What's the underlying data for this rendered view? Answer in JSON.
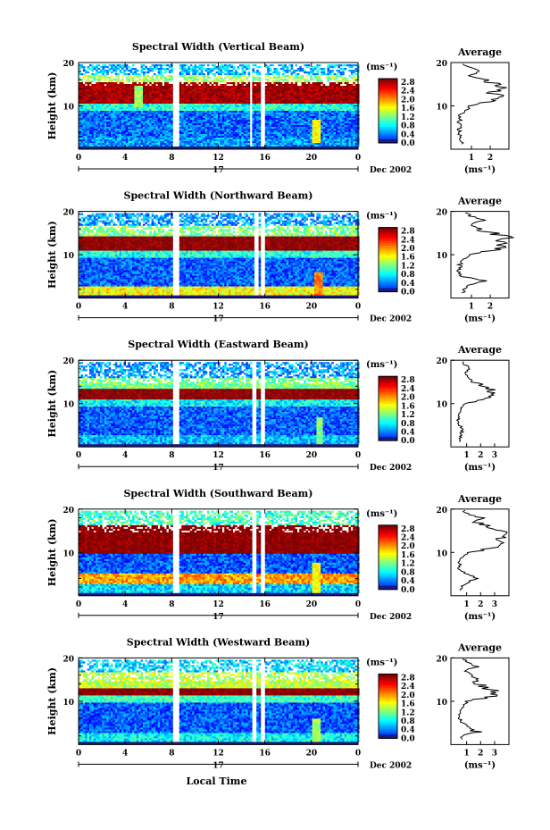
{
  "figure": {
    "xlabel": "Local Time",
    "day_label": "17",
    "date_label": "Dec 2002"
  },
  "chart_data": [
    {
      "type": "heatmap",
      "title": "Spectral Width (Vertical Beam)",
      "ylabel": "Height (km)",
      "xlabel": "Local Time",
      "x_range": [
        0,
        24
      ],
      "y_range": [
        0,
        20
      ],
      "xticks": [
        "0",
        "4",
        "8",
        "12",
        "16",
        "20",
        "0"
      ],
      "yticks": [
        "20",
        "10"
      ],
      "gaps_hours": [
        [
          8.0,
          8.5
        ],
        [
          14.7,
          14.9
        ],
        [
          15.5,
          16.0
        ]
      ],
      "colorbar": {
        "unit": "(ms⁻¹)",
        "ticks": [
          "2.8",
          "2.4",
          "2.0",
          "1.6",
          "1.2",
          "0.8",
          "0.4",
          "0.0"
        ]
      },
      "bands": [
        {
          "y": [
            1.0,
            3.0
          ],
          "value": 0.5
        },
        {
          "y": [
            3.0,
            9.0
          ],
          "value": 0.35
        },
        {
          "y": [
            9.0,
            10.8
          ],
          "value": 0.9
        },
        {
          "y": [
            10.8,
            15.5
          ],
          "value": 2.7
        },
        {
          "y": [
            15.5,
            17.5
          ],
          "value": 1.3
        },
        {
          "y": [
            17.5,
            20.0
          ],
          "value": 0.6
        }
      ],
      "streaks": [
        {
          "x": 20.3,
          "y": [
            1.5,
            7.0
          ],
          "value": 1.6
        },
        {
          "x": 5.0,
          "y": [
            10.0,
            15.0
          ],
          "value": 1.3
        }
      ],
      "average": {
        "title": "Average",
        "unit": "(ms⁻¹)",
        "xticks": [
          "1",
          "2"
        ],
        "yticks": [
          "20",
          "10"
        ],
        "heights": [
          2,
          3,
          4,
          5,
          6,
          8,
          9,
          10,
          11,
          12,
          13,
          14,
          15,
          16,
          17,
          18,
          19,
          20
        ],
        "values": [
          0.5,
          0.4,
          0.35,
          0.4,
          0.35,
          0.4,
          0.7,
          0.9,
          2.2,
          2.6,
          2.1,
          2.8,
          2.3,
          1.7,
          0.9,
          1.5,
          0.8,
          0.6
        ]
      }
    },
    {
      "type": "heatmap",
      "title": "Spectral Width (Northward Beam)",
      "ylabel": "Height (km)",
      "xlabel": "Local Time",
      "x_range": [
        0,
        24
      ],
      "y_range": [
        0,
        20
      ],
      "xticks": [
        "0",
        "4",
        "8",
        "12",
        "16",
        "20",
        "0"
      ],
      "yticks": [
        "20",
        "10"
      ],
      "gaps_hours": [
        [
          8.0,
          8.5
        ],
        [
          15.0,
          15.4
        ],
        [
          15.6,
          16.0
        ]
      ],
      "colorbar": {
        "unit": "(ms⁻¹)",
        "ticks": [
          "2.8",
          "2.4",
          "2.0",
          "1.6",
          "1.2",
          "0.8",
          "0.4",
          "0.0"
        ]
      },
      "bands": [
        {
          "y": [
            1.0,
            2.8
          ],
          "value": 1.6
        },
        {
          "y": [
            2.8,
            9.5
          ],
          "value": 0.3
        },
        {
          "y": [
            9.5,
            11.0
          ],
          "value": 0.9
        },
        {
          "y": [
            11.0,
            14.5
          ],
          "value": 2.8
        },
        {
          "y": [
            14.5,
            17.0
          ],
          "value": 1.2
        },
        {
          "y": [
            17.0,
            20.0
          ],
          "value": 0.5
        }
      ],
      "streaks": [
        {
          "x": 20.5,
          "y": [
            1.0,
            6.0
          ],
          "value": 2.0
        }
      ],
      "average": {
        "title": "Average",
        "unit": "(ms⁻¹)",
        "xticks": [
          "1",
          "2"
        ],
        "yticks": [
          "20",
          "10"
        ],
        "heights": [
          2,
          3,
          4,
          5,
          6,
          8,
          9,
          10,
          11,
          12,
          13,
          14,
          15,
          16,
          17,
          18,
          19,
          20
        ],
        "values": [
          0.6,
          0.9,
          1.7,
          0.5,
          0.35,
          0.4,
          0.6,
          0.9,
          2.4,
          2.8,
          2.6,
          2.9,
          2.2,
          1.4,
          0.9,
          1.6,
          0.9,
          0.6
        ]
      }
    },
    {
      "type": "heatmap",
      "title": "Spectral Width (Eastward Beam)",
      "ylabel": "Height (km)",
      "xlabel": "Local Time",
      "x_range": [
        0,
        24
      ],
      "y_range": [
        0,
        20
      ],
      "xticks": [
        "0",
        "4",
        "8",
        "12",
        "16",
        "20",
        "0"
      ],
      "yticks": [
        "20",
        "10"
      ],
      "gaps_hours": [
        [
          8.0,
          8.5
        ],
        [
          14.8,
          15.1
        ],
        [
          15.6,
          16.0
        ]
      ],
      "colorbar": {
        "unit": "(ms⁻¹)",
        "ticks": [
          "2.8",
          "2.4",
          "2.0",
          "1.6",
          "1.2",
          "0.8",
          "0.4",
          "0.0"
        ]
      },
      "bands": [
        {
          "y": [
            1.0,
            3.0
          ],
          "value": 0.6
        },
        {
          "y": [
            3.0,
            9.5
          ],
          "value": 0.3
        },
        {
          "y": [
            9.5,
            11.0
          ],
          "value": 0.8
        },
        {
          "y": [
            11.0,
            13.5
          ],
          "value": 2.8
        },
        {
          "y": [
            13.5,
            16.0
          ],
          "value": 1.2
        },
        {
          "y": [
            16.0,
            20.0
          ],
          "value": 0.5
        }
      ],
      "streaks": [
        {
          "x": 20.6,
          "y": [
            1.0,
            7.0
          ],
          "value": 1.2
        }
      ],
      "average": {
        "title": "Average",
        "unit": "(ms⁻¹)",
        "xticks": [
          "1",
          "2",
          "3"
        ],
        "yticks": [
          "20",
          "10"
        ],
        "heights": [
          2,
          3,
          4,
          5,
          6,
          8,
          9,
          10,
          11,
          12,
          13,
          14,
          15,
          16,
          17,
          18,
          19,
          20
        ],
        "values": [
          0.5,
          0.6,
          0.7,
          0.5,
          0.4,
          0.45,
          0.6,
          0.9,
          2.5,
          3.1,
          2.8,
          2.0,
          1.4,
          1.2,
          0.8,
          1.3,
          0.9,
          0.6
        ]
      }
    },
    {
      "type": "heatmap",
      "title": "Spectral Width (Southward Beam)",
      "ylabel": "Height (km)",
      "xlabel": "Local Time",
      "x_range": [
        0,
        24
      ],
      "y_range": [
        0,
        20
      ],
      "xticks": [
        "0",
        "4",
        "8",
        "12",
        "16",
        "20",
        "0"
      ],
      "yticks": [
        "20",
        "10"
      ],
      "gaps_hours": [
        [
          8.0,
          8.5
        ],
        [
          14.8,
          15.1
        ],
        [
          15.6,
          16.0
        ]
      ],
      "colorbar": {
        "unit": "(ms⁻¹)",
        "ticks": [
          "2.8",
          "2.4",
          "2.0",
          "1.6",
          "1.2",
          "0.8",
          "0.4",
          "0.0"
        ]
      },
      "bands": [
        {
          "y": [
            1.0,
            3.0
          ],
          "value": 0.7
        },
        {
          "y": [
            3.0,
            5.5
          ],
          "value": 1.9
        },
        {
          "y": [
            5.5,
            10.0
          ],
          "value": 0.3
        },
        {
          "y": [
            10.0,
            16.5
          ],
          "value": 2.8
        },
        {
          "y": [
            16.5,
            20.0
          ],
          "value": 1.0
        }
      ],
      "streaks": [
        {
          "x": 20.4,
          "y": [
            1.0,
            8.0
          ],
          "value": 1.6
        }
      ],
      "average": {
        "title": "Average",
        "unit": "(ms⁻¹)",
        "xticks": [
          "1",
          "2",
          "3"
        ],
        "yticks": [
          "20",
          "10"
        ],
        "heights": [
          2,
          3,
          4,
          5,
          6,
          8,
          9,
          10,
          11,
          12,
          13,
          14,
          15,
          16,
          17,
          18,
          19,
          20
        ],
        "values": [
          0.6,
          1.2,
          1.9,
          1.0,
          0.5,
          0.5,
          0.7,
          1.1,
          3.0,
          3.6,
          3.2,
          3.8,
          3.3,
          2.5,
          1.6,
          1.9,
          1.0,
          0.7
        ]
      }
    },
    {
      "type": "heatmap",
      "title": "Spectral Width (Westward Beam)",
      "ylabel": "Height (km)",
      "xlabel": "Local Time",
      "x_range": [
        0,
        24
      ],
      "y_range": [
        0,
        20
      ],
      "xticks": [
        "0",
        "4",
        "8",
        "12",
        "16",
        "20",
        "0"
      ],
      "yticks": [
        "20",
        "10"
      ],
      "gaps_hours": [
        [
          8.0,
          8.5
        ],
        [
          14.8,
          15.1
        ],
        [
          15.6,
          16.0
        ]
      ],
      "colorbar": {
        "unit": "(ms⁻¹)",
        "ticks": [
          "2.8",
          "2.4",
          "2.0",
          "1.6",
          "1.2",
          "0.8",
          "0.4",
          "0.0"
        ]
      },
      "bands": [
        {
          "y": [
            1.0,
            3.0
          ],
          "value": 0.8
        },
        {
          "y": [
            3.0,
            10.0
          ],
          "value": 0.3
        },
        {
          "y": [
            10.0,
            11.5
          ],
          "value": 1.0
        },
        {
          "y": [
            11.5,
            13.0
          ],
          "value": 2.8
        },
        {
          "y": [
            13.0,
            17.0
          ],
          "value": 1.4
        },
        {
          "y": [
            17.0,
            20.0
          ],
          "value": 0.7
        }
      ],
      "streaks": [
        {
          "x": 20.3,
          "y": [
            1.0,
            6.0
          ],
          "value": 1.3
        }
      ],
      "average": {
        "title": "Average",
        "unit": "(ms⁻¹)",
        "xticks": [
          "1",
          "2",
          "3"
        ],
        "yticks": [
          "20",
          "10"
        ],
        "heights": [
          2,
          3,
          4,
          5,
          6,
          8,
          9,
          10,
          11,
          12,
          13,
          14,
          15,
          16,
          17,
          18,
          19,
          20
        ],
        "values": [
          0.7,
          1.8,
          1.1,
          0.7,
          0.5,
          0.5,
          0.8,
          1.0,
          2.6,
          3.3,
          2.4,
          1.9,
          1.6,
          1.3,
          0.9,
          1.6,
          1.1,
          0.7
        ]
      }
    }
  ]
}
